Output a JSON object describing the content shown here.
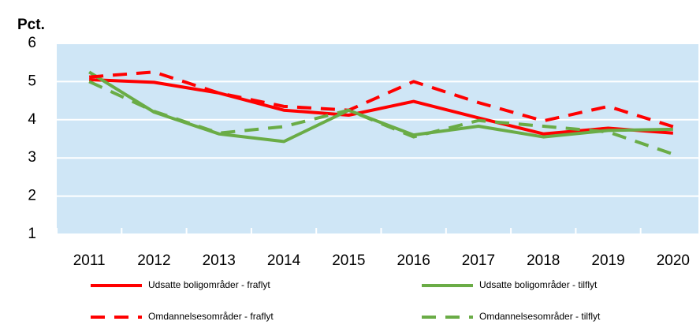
{
  "chart_data": {
    "type": "line",
    "y_label": "Pct.",
    "categories": [
      "2011",
      "2012",
      "2013",
      "2014",
      "2015",
      "2016",
      "2017",
      "2018",
      "2019",
      "2020"
    ],
    "series": [
      {
        "name": "Udsatte boligområder - fraflyt",
        "color": "#ff0000",
        "dashed": false,
        "values": [
          5.05,
          4.98,
          4.7,
          4.25,
          4.12,
          4.48,
          4.05,
          3.63,
          3.78,
          3.65
        ]
      },
      {
        "name": "Udsatte boligområder - tilflyt",
        "color": "#6aac46",
        "dashed": false,
        "values": [
          5.25,
          4.2,
          3.63,
          3.43,
          4.25,
          3.6,
          3.83,
          3.55,
          3.72,
          3.75
        ]
      },
      {
        "name": "Omdannelsesområder - fraflyt",
        "color": "#ff0000",
        "dashed": true,
        "values": [
          5.12,
          5.25,
          4.7,
          4.35,
          4.25,
          5.0,
          4.45,
          3.97,
          4.35,
          3.82
        ]
      },
      {
        "name": "Omdannelsesområder - tilflyt",
        "color": "#6aac46",
        "dashed": true,
        "values": [
          5.0,
          4.22,
          3.65,
          3.82,
          4.25,
          3.55,
          3.98,
          3.83,
          3.68,
          3.1
        ]
      }
    ],
    "ylim": [
      1,
      6
    ],
    "yticks": [
      1,
      2,
      3,
      4,
      5,
      6
    ],
    "grid": true,
    "legend": "bottom"
  }
}
